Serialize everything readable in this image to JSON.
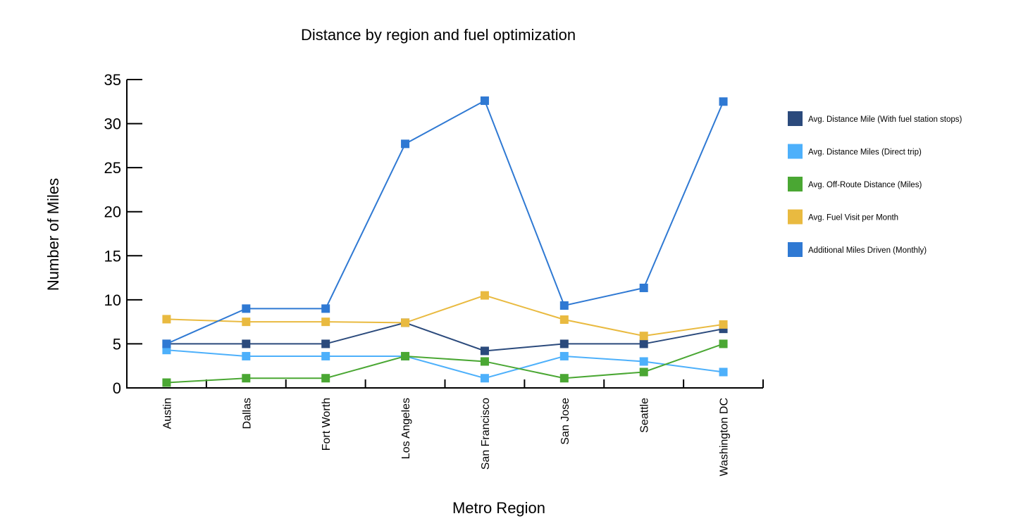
{
  "chart_data": {
    "type": "line",
    "title": "Distance by region and fuel optimization",
    "xlabel": "Metro Region",
    "ylabel": "Number of Miles",
    "ylim": [
      0,
      35
    ],
    "yticks": [
      0,
      5,
      10,
      15,
      20,
      25,
      30,
      35
    ],
    "grid": false,
    "legend_position": "right",
    "categories": [
      "Austin",
      "Dallas",
      "Fort Worth",
      "Los Angeles",
      "San Francisco",
      "San Jose",
      "Seattle",
      "Washington DC"
    ],
    "series": [
      {
        "name": "Avg. Distance Mile (With fuel station stops)",
        "color": "#2b4a7c",
        "values": [
          5,
          5,
          5,
          7.4,
          4.2,
          5,
          5,
          6.7
        ]
      },
      {
        "name": "Avg. Distance Miles (Direct trip)",
        "color": "#4db0fb",
        "values": [
          4.3,
          3.6,
          3.6,
          3.6,
          1.1,
          3.6,
          3.0,
          1.8
        ]
      },
      {
        "name": "Avg. Off-Route Distance (Miles)",
        "color": "#4aa733",
        "values": [
          0.6,
          1.1,
          1.1,
          3.6,
          3.0,
          1.1,
          1.8,
          5
        ]
      },
      {
        "name": "Avg. Fuel Visit per Month",
        "color": "#e9ba40",
        "values": [
          7.8,
          7.5,
          7.5,
          7.4,
          10.5,
          7.75,
          5.9,
          7.2
        ]
      },
      {
        "name": "Additional Miles Driven (Monthly)",
        "color": "#2f79d3",
        "values": [
          5,
          9.0,
          9.0,
          27.7,
          32.6,
          9.35,
          11.35,
          32.5
        ]
      }
    ]
  }
}
